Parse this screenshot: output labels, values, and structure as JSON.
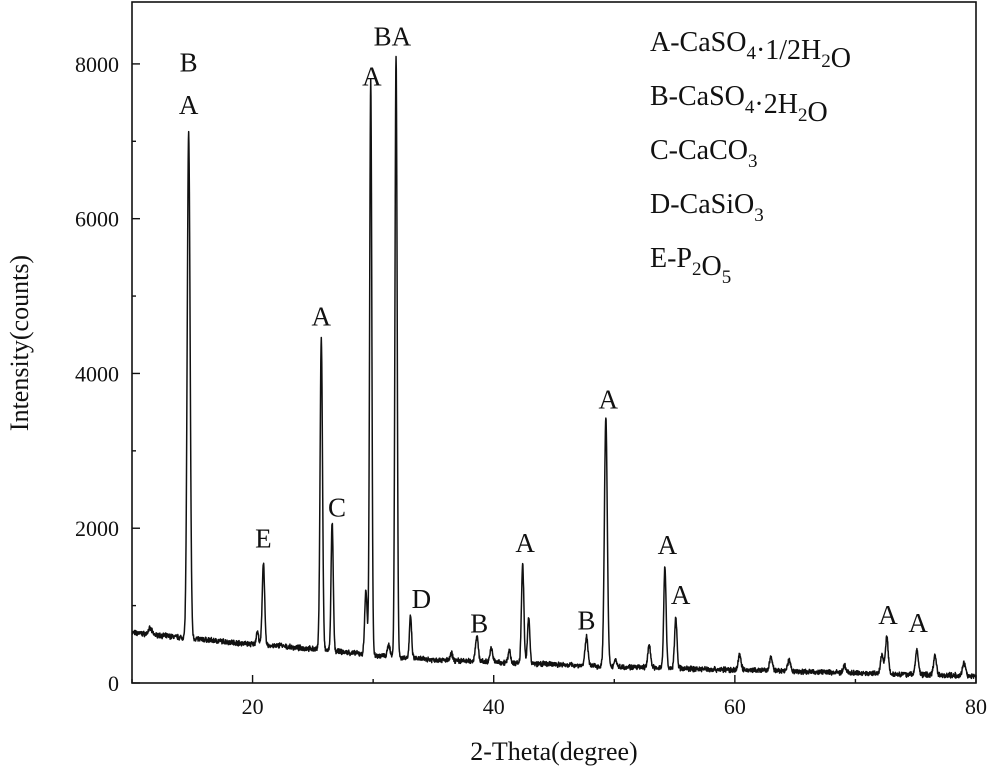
{
  "chart_data": {
    "type": "line",
    "title": "",
    "xlabel": "2-Theta(degree)",
    "ylabel": "Intensity(counts)",
    "xlim": [
      10,
      80
    ],
    "ylim": [
      0,
      8800
    ],
    "x_ticks": [
      20,
      40,
      60,
      80
    ],
    "y_ticks": [
      0,
      2000,
      4000,
      6000,
      8000
    ],
    "x_tick_labels": [
      "20",
      "40",
      "60",
      "80"
    ],
    "y_tick_labels": [
      "0",
      "2000",
      "4000",
      "6000",
      "8000"
    ],
    "grid": false,
    "legend_placement": "top-right",
    "legend": [
      {
        "parts": [
          {
            "t": "A-CaSO"
          },
          {
            "t": "4",
            "sub": true
          },
          {
            "t": "·1/2H"
          },
          {
            "t": "2",
            "sub": true
          },
          {
            "t": "O"
          }
        ]
      },
      {
        "parts": [
          {
            "t": "B-CaSO"
          },
          {
            "t": "4",
            "sub": true
          },
          {
            "t": "·2H"
          },
          {
            "t": "2",
            "sub": true
          },
          {
            "t": "O"
          }
        ]
      },
      {
        "parts": [
          {
            "t": "C-CaCO"
          },
          {
            "t": "3",
            "sub": true
          }
        ]
      },
      {
        "parts": [
          {
            "t": "D-CaSiO"
          },
          {
            "t": "3",
            "sub": true
          }
        ]
      },
      {
        "parts": [
          {
            "t": "E-P"
          },
          {
            "t": "2",
            "sub": true
          },
          {
            "t": "O"
          },
          {
            "t": "5",
            "sub": true
          }
        ]
      }
    ],
    "background": [
      [
        10,
        650
      ],
      [
        12,
        620
      ],
      [
        14,
        590
      ],
      [
        16,
        560
      ],
      [
        18,
        530
      ],
      [
        20,
        500
      ],
      [
        25,
        440
      ],
      [
        30,
        360
      ],
      [
        35,
        300
      ],
      [
        40,
        270
      ],
      [
        45,
        240
      ],
      [
        50,
        210
      ],
      [
        55,
        190
      ],
      [
        60,
        170
      ],
      [
        65,
        150
      ],
      [
        70,
        130
      ],
      [
        75,
        110
      ],
      [
        80,
        90
      ]
    ],
    "peaks": [
      {
        "x": 11.5,
        "y": 700,
        "w": 0.15
      },
      {
        "x": 14.7,
        "y": 7100,
        "w": 0.12
      },
      {
        "x": 20.4,
        "y": 660,
        "w": 0.1
      },
      {
        "x": 20.9,
        "y": 1560,
        "w": 0.1
      },
      {
        "x": 22.3,
        "y": 500,
        "w": 0.1
      },
      {
        "x": 25.7,
        "y": 4450,
        "w": 0.1
      },
      {
        "x": 26.6,
        "y": 2070,
        "w": 0.09
      },
      {
        "x": 29.4,
        "y": 1200,
        "w": 0.1
      },
      {
        "x": 29.8,
        "y": 7800,
        "w": 0.09
      },
      {
        "x": 31.3,
        "y": 500,
        "w": 0.1
      },
      {
        "x": 31.9,
        "y": 8120,
        "w": 0.09
      },
      {
        "x": 33.1,
        "y": 860,
        "w": 0.09
      },
      {
        "x": 36.5,
        "y": 380,
        "w": 0.1
      },
      {
        "x": 38.6,
        "y": 600,
        "w": 0.12
      },
      {
        "x": 39.8,
        "y": 440,
        "w": 0.12
      },
      {
        "x": 41.3,
        "y": 420,
        "w": 0.1
      },
      {
        "x": 42.4,
        "y": 1540,
        "w": 0.1
      },
      {
        "x": 42.9,
        "y": 830,
        "w": 0.1
      },
      {
        "x": 47.7,
        "y": 590,
        "w": 0.12
      },
      {
        "x": 49.3,
        "y": 3420,
        "w": 0.12
      },
      {
        "x": 50.1,
        "y": 310,
        "w": 0.1
      },
      {
        "x": 52.9,
        "y": 480,
        "w": 0.12
      },
      {
        "x": 54.2,
        "y": 1490,
        "w": 0.1
      },
      {
        "x": 55.1,
        "y": 850,
        "w": 0.1
      },
      {
        "x": 60.4,
        "y": 360,
        "w": 0.12
      },
      {
        "x": 63.0,
        "y": 330,
        "w": 0.12
      },
      {
        "x": 64.5,
        "y": 300,
        "w": 0.12
      },
      {
        "x": 69.1,
        "y": 220,
        "w": 0.12
      },
      {
        "x": 72.2,
        "y": 360,
        "w": 0.12
      },
      {
        "x": 72.6,
        "y": 590,
        "w": 0.12
      },
      {
        "x": 75.1,
        "y": 420,
        "w": 0.12
      },
      {
        "x": 76.6,
        "y": 360,
        "w": 0.12
      },
      {
        "x": 79.0,
        "y": 260,
        "w": 0.12
      }
    ],
    "annotations": [
      {
        "text": "B",
        "x": 14.7,
        "y": 7900
      },
      {
        "text": "A",
        "x": 14.7,
        "y": 7350
      },
      {
        "text": "E",
        "x": 20.9,
        "y": 1750
      },
      {
        "text": "A",
        "x": 25.7,
        "y": 4620
      },
      {
        "text": "C",
        "x": 27.0,
        "y": 2150
      },
      {
        "text": "A",
        "x": 29.9,
        "y": 7720
      },
      {
        "text": "BA",
        "x": 31.6,
        "y": 8240
      },
      {
        "text": "D",
        "x": 34.0,
        "y": 970
      },
      {
        "text": "B",
        "x": 38.8,
        "y": 650
      },
      {
        "text": "A",
        "x": 42.6,
        "y": 1690
      },
      {
        "text": "B",
        "x": 47.7,
        "y": 690
      },
      {
        "text": "A",
        "x": 49.5,
        "y": 3550
      },
      {
        "text": "A",
        "x": 54.4,
        "y": 1670
      },
      {
        "text": "A",
        "x": 55.5,
        "y": 1020
      },
      {
        "text": "A",
        "x": 72.7,
        "y": 760
      },
      {
        "text": "A",
        "x": 75.2,
        "y": 660
      }
    ]
  }
}
